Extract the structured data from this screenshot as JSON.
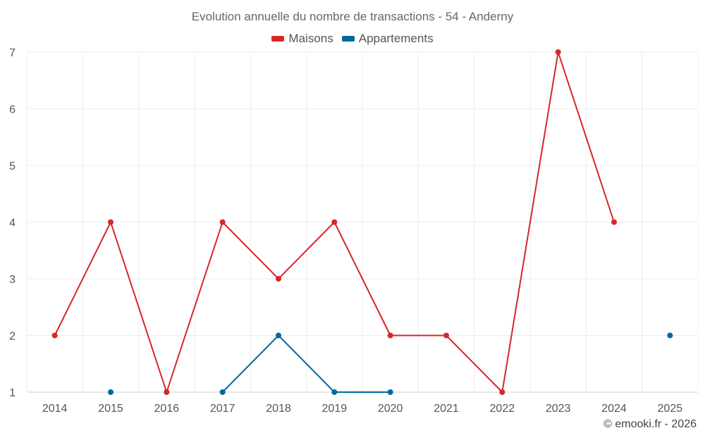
{
  "chart_data": {
    "type": "line",
    "title": "Evolution annuelle du nombre de transactions - 54 - Anderny",
    "categories": [
      "2014",
      "2015",
      "2016",
      "2017",
      "2018",
      "2019",
      "2020",
      "2021",
      "2022",
      "2023",
      "2024",
      "2025"
    ],
    "series": [
      {
        "name": "Maisons",
        "color": "#d62728",
        "values": [
          2,
          4,
          1,
          4,
          3,
          4,
          2,
          2,
          1,
          7,
          4,
          null
        ]
      },
      {
        "name": "Appartements",
        "color": "#0068a0",
        "values": [
          null,
          1,
          null,
          1,
          2,
          1,
          1,
          null,
          null,
          null,
          null,
          2
        ]
      }
    ],
    "ylim": [
      1,
      7
    ],
    "yticks": [
      1,
      2,
      3,
      4,
      5,
      6,
      7
    ],
    "grid": true,
    "xlabel": "",
    "ylabel": ""
  },
  "credit": "© emooki.fr - 2026"
}
